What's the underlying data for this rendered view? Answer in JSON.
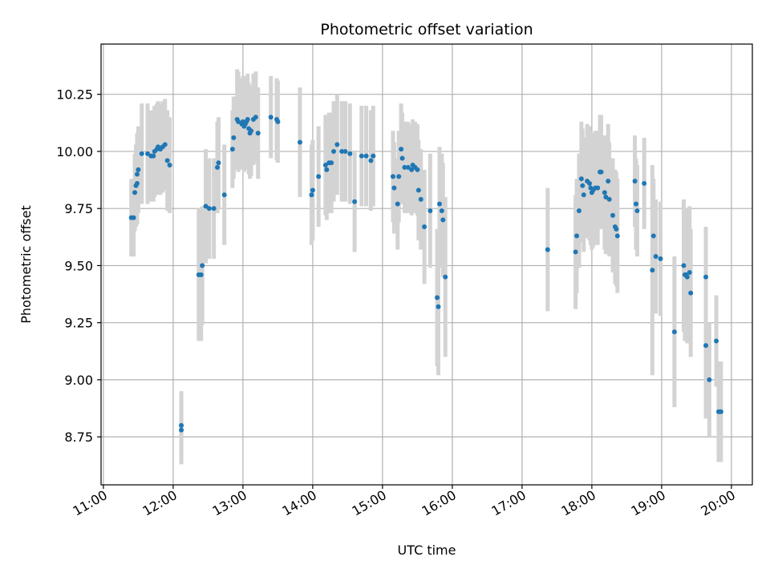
{
  "chart_data": {
    "type": "scatter",
    "title": "Photometric offset variation",
    "xlabel": "UTC time",
    "ylabel": "Photometric offset",
    "x_ticks": [
      "11:00",
      "12:00",
      "13:00",
      "14:00",
      "15:00",
      "16:00",
      "17:00",
      "18:00",
      "19:00",
      "20:00"
    ],
    "y_ticks": [
      "8.75",
      "9.00",
      "9.25",
      "9.50",
      "9.75",
      "10.00",
      "10.25"
    ],
    "xlim": [
      "10:58",
      "20:18"
    ],
    "ylim": [
      8.54,
      10.47
    ],
    "grid": true,
    "errorbar_color": "#d3d3d3",
    "point_color": "#1f77b4",
    "series": [
      {
        "points": [
          {
            "x": "11:24",
            "y": 9.71,
            "err": 0.17
          },
          {
            "x": "11:26",
            "y": 9.71,
            "err": 0.17
          },
          {
            "x": "11:27",
            "y": 9.82,
            "err": 0.17
          },
          {
            "x": "11:28",
            "y": 9.85,
            "err": 0.18
          },
          {
            "x": "11:29",
            "y": 9.86,
            "err": 0.18
          },
          {
            "x": "11:29",
            "y": 9.9,
            "err": 0.18
          },
          {
            "x": "11:30",
            "y": 9.92,
            "err": 0.19
          },
          {
            "x": "11:33",
            "y": 9.99,
            "err": 0.22
          },
          {
            "x": "11:38",
            "y": 9.99,
            "err": 0.22
          },
          {
            "x": "11:41",
            "y": 9.98,
            "err": 0.2
          },
          {
            "x": "11:43",
            "y": 9.98,
            "err": 0.2
          },
          {
            "x": "11:44",
            "y": 10.0,
            "err": 0.2
          },
          {
            "x": "11:46",
            "y": 10.01,
            "err": 0.2
          },
          {
            "x": "11:47",
            "y": 10.02,
            "err": 0.2
          },
          {
            "x": "11:49",
            "y": 10.01,
            "err": 0.2
          },
          {
            "x": "11:51",
            "y": 10.02,
            "err": 0.2
          },
          {
            "x": "11:53",
            "y": 10.03,
            "err": 0.2
          },
          {
            "x": "11:55",
            "y": 9.96,
            "err": 0.22
          },
          {
            "x": "11:57",
            "y": 9.94,
            "err": 0.21
          },
          {
            "x": "12:07",
            "y": 8.8,
            "err": 0.15
          },
          {
            "x": "12:07",
            "y": 8.78,
            "err": 0.15
          },
          {
            "x": "12:22",
            "y": 9.46,
            "err": 0.29
          },
          {
            "x": "12:24",
            "y": 9.46,
            "err": 0.29
          },
          {
            "x": "12:25",
            "y": 9.5,
            "err": 0.26
          },
          {
            "x": "12:28",
            "y": 9.76,
            "err": 0.25
          },
          {
            "x": "12:31",
            "y": 9.75,
            "err": 0.22
          },
          {
            "x": "12:35",
            "y": 9.75,
            "err": 0.22
          },
          {
            "x": "12:38",
            "y": 9.93,
            "err": 0.2
          },
          {
            "x": "12:39",
            "y": 9.95,
            "err": 0.2
          },
          {
            "x": "12:44",
            "y": 9.81,
            "err": 0.22
          },
          {
            "x": "12:51",
            "y": 10.01,
            "err": 0.17
          },
          {
            "x": "12:52",
            "y": 10.06,
            "err": 0.18
          },
          {
            "x": "12:55",
            "y": 10.14,
            "err": 0.22
          },
          {
            "x": "12:56",
            "y": 10.13,
            "err": 0.22
          },
          {
            "x": "12:59",
            "y": 10.12,
            "err": 0.2
          },
          {
            "x": "13:00",
            "y": 10.13,
            "err": 0.2
          },
          {
            "x": "13:01",
            "y": 10.11,
            "err": 0.2
          },
          {
            "x": "13:02",
            "y": 10.12,
            "err": 0.2
          },
          {
            "x": "13:03",
            "y": 10.13,
            "err": 0.2
          },
          {
            "x": "13:04",
            "y": 10.14,
            "err": 0.2
          },
          {
            "x": "13:05",
            "y": 10.1,
            "err": 0.2
          },
          {
            "x": "13:06",
            "y": 10.08,
            "err": 0.2
          },
          {
            "x": "13:07",
            "y": 10.09,
            "err": 0.2
          },
          {
            "x": "13:09",
            "y": 10.14,
            "err": 0.2
          },
          {
            "x": "13:11",
            "y": 10.15,
            "err": 0.2
          },
          {
            "x": "13:13",
            "y": 10.08,
            "err": 0.2
          },
          {
            "x": "13:24",
            "y": 10.15,
            "err": 0.18
          },
          {
            "x": "13:29",
            "y": 10.14,
            "err": 0.18
          },
          {
            "x": "13:30",
            "y": 10.13,
            "err": 0.18
          },
          {
            "x": "13:49",
            "y": 10.04,
            "err": 0.24
          },
          {
            "x": "13:59",
            "y": 9.81,
            "err": 0.22
          },
          {
            "x": "14:00",
            "y": 9.83,
            "err": 0.22
          },
          {
            "x": "14:05",
            "y": 9.89,
            "err": 0.22
          },
          {
            "x": "14:11",
            "y": 9.94,
            "err": 0.22
          },
          {
            "x": "14:12",
            "y": 9.92,
            "err": 0.22
          },
          {
            "x": "14:14",
            "y": 9.95,
            "err": 0.22
          },
          {
            "x": "14:16",
            "y": 9.95,
            "err": 0.22
          },
          {
            "x": "14:18",
            "y": 10.0,
            "err": 0.22
          },
          {
            "x": "14:21",
            "y": 10.03,
            "err": 0.22
          },
          {
            "x": "14:25",
            "y": 10.0,
            "err": 0.22
          },
          {
            "x": "14:28",
            "y": 10.0,
            "err": 0.22
          },
          {
            "x": "14:32",
            "y": 9.99,
            "err": 0.22
          },
          {
            "x": "14:36",
            "y": 9.78,
            "err": 0.22
          },
          {
            "x": "14:42",
            "y": 9.98,
            "err": 0.22
          },
          {
            "x": "14:46",
            "y": 9.98,
            "err": 0.22
          },
          {
            "x": "14:50",
            "y": 9.96,
            "err": 0.22
          },
          {
            "x": "14:52",
            "y": 9.98,
            "err": 0.22
          },
          {
            "x": "15:09",
            "y": 9.89,
            "err": 0.2
          },
          {
            "x": "15:10",
            "y": 9.84,
            "err": 0.2
          },
          {
            "x": "15:13",
            "y": 9.77,
            "err": 0.2
          },
          {
            "x": "15:14",
            "y": 9.89,
            "err": 0.2
          },
          {
            "x": "15:16",
            "y": 10.01,
            "err": 0.2
          },
          {
            "x": "15:17",
            "y": 9.97,
            "err": 0.2
          },
          {
            "x": "15:19",
            "y": 9.93,
            "err": 0.2
          },
          {
            "x": "15:22",
            "y": 9.93,
            "err": 0.2
          },
          {
            "x": "15:25",
            "y": 9.92,
            "err": 0.2
          },
          {
            "x": "15:26",
            "y": 9.94,
            "err": 0.2
          },
          {
            "x": "15:28",
            "y": 9.93,
            "err": 0.2
          },
          {
            "x": "15:30",
            "y": 9.92,
            "err": 0.2
          },
          {
            "x": "15:31",
            "y": 9.83,
            "err": 0.22
          },
          {
            "x": "15:33",
            "y": 9.79,
            "err": 0.22
          },
          {
            "x": "15:36",
            "y": 9.67,
            "err": 0.25
          },
          {
            "x": "15:41",
            "y": 9.74,
            "err": 0.25
          },
          {
            "x": "15:47",
            "y": 9.36,
            "err": 0.3
          },
          {
            "x": "15:48",
            "y": 9.32,
            "err": 0.3
          },
          {
            "x": "15:49",
            "y": 9.77,
            "err": 0.25
          },
          {
            "x": "15:51",
            "y": 9.74,
            "err": 0.25
          },
          {
            "x": "15:52",
            "y": 9.7,
            "err": 0.25
          },
          {
            "x": "15:54",
            "y": 9.45,
            "err": 0.35
          },
          {
            "x": "17:22",
            "y": 9.57,
            "err": 0.27
          },
          {
            "x": "17:46",
            "y": 9.56,
            "err": 0.25
          },
          {
            "x": "17:47",
            "y": 9.63,
            "err": 0.25
          },
          {
            "x": "17:49",
            "y": 9.74,
            "err": 0.25
          },
          {
            "x": "17:51",
            "y": 9.88,
            "err": 0.25
          },
          {
            "x": "17:52",
            "y": 9.85,
            "err": 0.25
          },
          {
            "x": "17:53",
            "y": 9.81,
            "err": 0.25
          },
          {
            "x": "17:56",
            "y": 9.87,
            "err": 0.25
          },
          {
            "x": "17:58",
            "y": 9.86,
            "err": 0.25
          },
          {
            "x": "17:59",
            "y": 9.84,
            "err": 0.25
          },
          {
            "x": "18:00",
            "y": 9.82,
            "err": 0.25
          },
          {
            "x": "18:01",
            "y": 9.83,
            "err": 0.25
          },
          {
            "x": "18:03",
            "y": 9.84,
            "err": 0.25
          },
          {
            "x": "18:05",
            "y": 9.84,
            "err": 0.25
          },
          {
            "x": "18:07",
            "y": 9.91,
            "err": 0.25
          },
          {
            "x": "18:08",
            "y": 9.91,
            "err": 0.25
          },
          {
            "x": "18:11",
            "y": 9.82,
            "err": 0.25
          },
          {
            "x": "18:12",
            "y": 9.8,
            "err": 0.25
          },
          {
            "x": "18:14",
            "y": 9.87,
            "err": 0.25
          },
          {
            "x": "18:15",
            "y": 9.79,
            "err": 0.25
          },
          {
            "x": "18:18",
            "y": 9.72,
            "err": 0.25
          },
          {
            "x": "18:20",
            "y": 9.67,
            "err": 0.25
          },
          {
            "x": "18:21",
            "y": 9.66,
            "err": 0.25
          },
          {
            "x": "18:22",
            "y": 9.63,
            "err": 0.25
          },
          {
            "x": "18:37",
            "y": 9.87,
            "err": 0.2
          },
          {
            "x": "18:38",
            "y": 9.77,
            "err": 0.2
          },
          {
            "x": "18:39",
            "y": 9.74,
            "err": 0.2
          },
          {
            "x": "18:45",
            "y": 9.86,
            "err": 0.2
          },
          {
            "x": "18:52",
            "y": 9.48,
            "err": 0.46
          },
          {
            "x": "18:53",
            "y": 9.63,
            "err": 0.25
          },
          {
            "x": "18:55",
            "y": 9.54,
            "err": 0.25
          },
          {
            "x": "18:59",
            "y": 9.53,
            "err": 0.25
          },
          {
            "x": "19:11",
            "y": 9.21,
            "err": 0.33
          },
          {
            "x": "19:19",
            "y": 9.5,
            "err": 0.29
          },
          {
            "x": "19:20",
            "y": 9.46,
            "err": 0.29
          },
          {
            "x": "19:21",
            "y": 9.46,
            "err": 0.29
          },
          {
            "x": "19:22",
            "y": 9.45,
            "err": 0.29
          },
          {
            "x": "19:24",
            "y": 9.47,
            "err": 0.29
          },
          {
            "x": "19:25",
            "y": 9.38,
            "err": 0.28
          },
          {
            "x": "19:38",
            "y": 9.45,
            "err": 0.22
          },
          {
            "x": "19:38",
            "y": 9.15,
            "err": 0.32
          },
          {
            "x": "19:41",
            "y": 9.0,
            "err": 0.25
          },
          {
            "x": "19:47",
            "y": 9.17,
            "err": 0.2
          },
          {
            "x": "19:49",
            "y": 8.86,
            "err": 0.22
          },
          {
            "x": "19:51",
            "y": 8.86,
            "err": 0.22
          }
        ]
      }
    ]
  }
}
